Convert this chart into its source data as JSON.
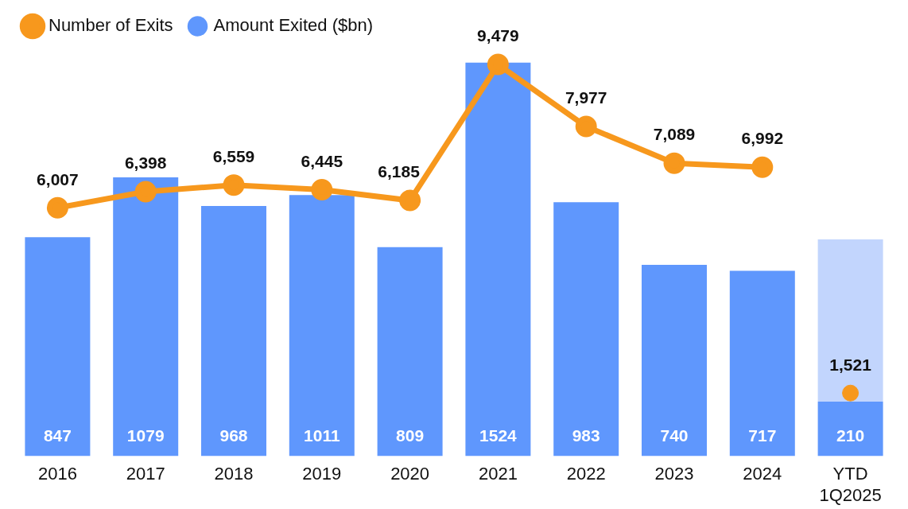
{
  "chart_data": {
    "type": "bar",
    "stacked": true,
    "legend": "top left",
    "categories": [
      "2016",
      "2017",
      "2018",
      "2019",
      "2020",
      "2021",
      "2022",
      "2023",
      "2024",
      "YTD\n1Q2025"
    ],
    "series": [
      {
        "name": "Amount Exited ($bn)",
        "color": "#5f97fd",
        "values": [
          847,
          1079,
          968,
          1011,
          809,
          1524,
          983,
          740,
          717,
          210
        ],
        "value_labels": [
          "847",
          "1079",
          "968",
          "1011",
          "809",
          "1524",
          "983",
          "740",
          "717",
          "210"
        ]
      },
      {
        "color": "#c2d5fd",
        "values": [
          null,
          null,
          null,
          null,
          null,
          null,
          null,
          null,
          null,
          629
        ]
      },
      {
        "name": "Number of Exits",
        "type": "line",
        "axis": "y2",
        "marker": "circle",
        "color": "#f7981d",
        "values": [
          6007,
          6398,
          6559,
          6445,
          6185,
          9479,
          7977,
          7089,
          6992,
          null
        ],
        "value_labels": [
          "6,007",
          "6,398",
          "6,559",
          "6,445",
          "6,185",
          "9,479",
          "7,977",
          "7,089",
          "6,992",
          null
        ]
      },
      {
        "type": "scatter",
        "axis": "y2",
        "marker": "circle",
        "color": "#f7981d",
        "values": [
          null,
          null,
          null,
          null,
          null,
          null,
          null,
          null,
          null,
          1521
        ],
        "value_labels": [
          null,
          null,
          null,
          null,
          null,
          null,
          null,
          null,
          null,
          "1,521"
        ]
      }
    ]
  }
}
